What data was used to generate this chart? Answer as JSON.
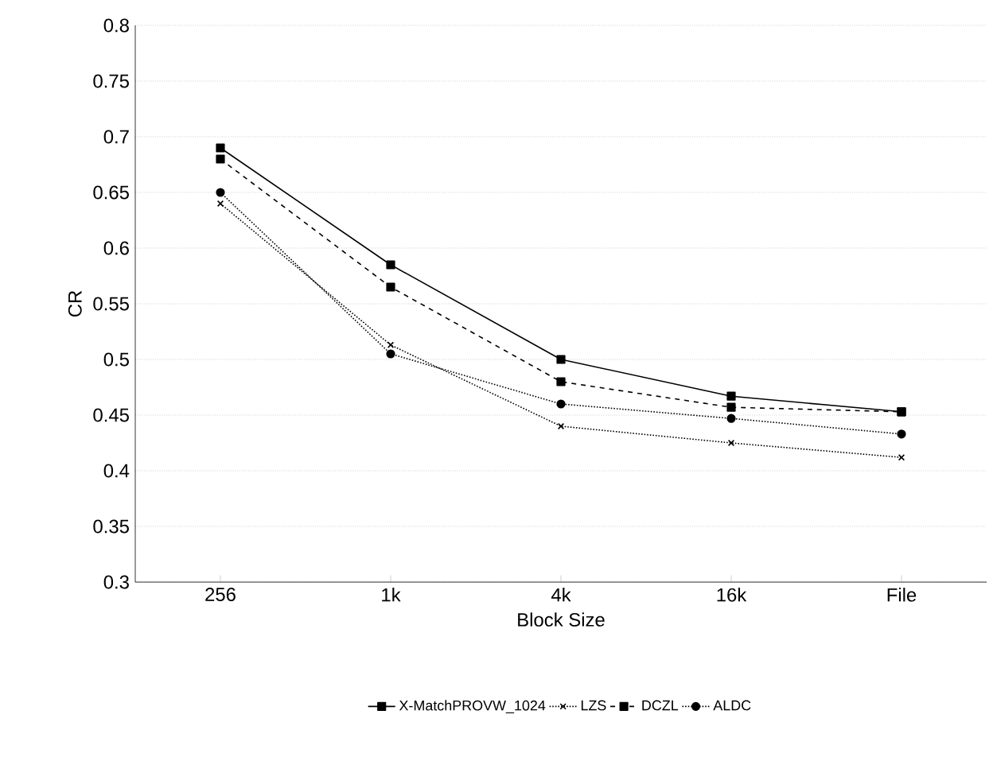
{
  "chart_data": {
    "type": "line",
    "xlabel": "Block Size",
    "ylabel": "CR",
    "categories": [
      "256",
      "1k",
      "4k",
      "16k",
      "File"
    ],
    "series": [
      {
        "name": "X-MatchPROVW_1024",
        "color": "#000000",
        "values": [
          0.69,
          0.585,
          0.5,
          0.467,
          0.453
        ],
        "marker": "square",
        "line_style": "solid"
      },
      {
        "name": "LZS",
        "color": "#000000",
        "values": [
          0.64,
          0.513,
          0.44,
          0.425,
          0.412
        ],
        "marker": "cross",
        "line_style": "dotted"
      },
      {
        "name": "DCZL",
        "color": "#000000",
        "values": [
          0.68,
          0.565,
          0.48,
          0.457,
          0.453
        ],
        "marker": "square",
        "line_style": "dashed"
      },
      {
        "name": "ALDC",
        "color": "#000000",
        "values": [
          0.65,
          0.505,
          0.46,
          0.447,
          0.433
        ],
        "marker": "circle",
        "line_style": "dotted"
      }
    ],
    "ylim": [
      0.3,
      0.8
    ],
    "yticks": [
      0.3,
      0.35,
      0.4,
      0.45,
      0.5,
      0.55,
      0.6,
      0.65,
      0.7,
      0.75,
      0.8
    ],
    "grid": "y",
    "legend": "bottom"
  }
}
